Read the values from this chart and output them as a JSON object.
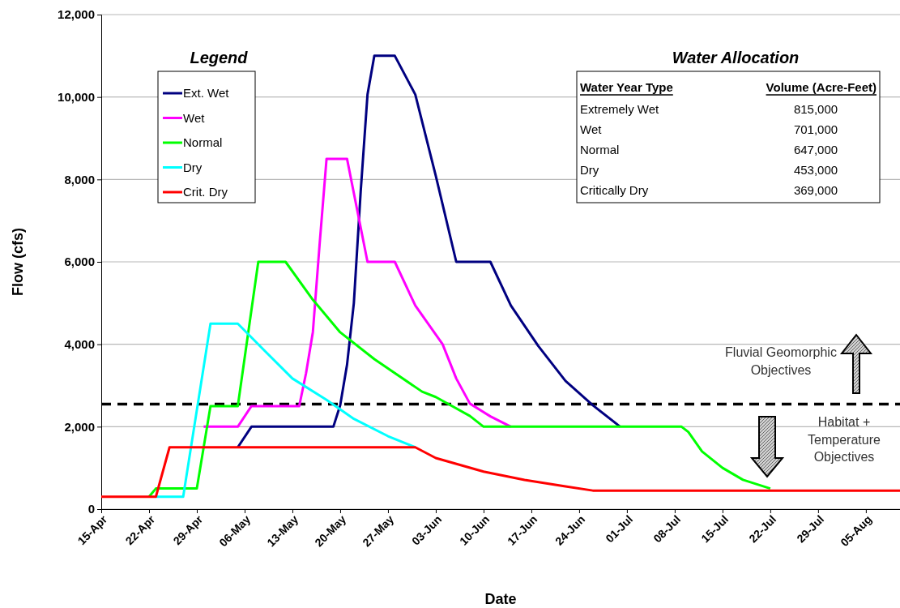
{
  "chart_data": {
    "type": "line",
    "xlabel": "Date",
    "ylabel": "Flow (cfs)",
    "legend_title": "Legend",
    "legend": "top left",
    "grid": "y",
    "marker": "none",
    "line_style": "solid",
    "xlim": [
      "--04-15",
      "--08-10"
    ],
    "xticks": [
      {
        "value": "--04-15",
        "label": "15-Apr"
      },
      {
        "value": "--04-22",
        "label": "22-Apr"
      },
      {
        "value": "--04-29",
        "label": "29-Apr"
      },
      {
        "value": "--05-06",
        "label": "06-May"
      },
      {
        "value": "--05-13",
        "label": "13-May"
      },
      {
        "value": "--05-20",
        "label": "20-May"
      },
      {
        "value": "--05-27",
        "label": "27-May"
      },
      {
        "value": "--06-03",
        "label": "03-Jun"
      },
      {
        "value": "--06-10",
        "label": "10-Jun"
      },
      {
        "value": "--06-17",
        "label": "17-Jun"
      },
      {
        "value": "--06-24",
        "label": "24-Jun"
      },
      {
        "value": "--07-01",
        "label": "01-Jul"
      },
      {
        "value": "--07-08",
        "label": "08-Jul"
      },
      {
        "value": "--07-15",
        "label": "15-Jul"
      },
      {
        "value": "--07-22",
        "label": "22-Jul"
      },
      {
        "value": "--07-29",
        "label": "29-Jul"
      },
      {
        "value": "--08-05",
        "label": "05-Aug"
      }
    ],
    "ylim": [
      0,
      12000
    ],
    "yticks": [
      {
        "value": 0,
        "label": "0"
      },
      {
        "value": 2000,
        "label": "2,000"
      },
      {
        "value": 4000,
        "label": "4,000"
      },
      {
        "value": 6000,
        "label": "6,000"
      },
      {
        "value": 8000,
        "label": "8,000"
      },
      {
        "value": 10000,
        "label": "10,000"
      },
      {
        "value": 12000,
        "label": "12,000"
      }
    ],
    "series": [
      {
        "name": "Ext. Wet",
        "color": "#000080",
        "x": [
          "--05-05",
          "--05-07",
          "--05-19",
          "--05-20",
          "--05-21",
          "--05-22",
          "--05-23",
          "--05-24",
          "--05-25",
          "--05-28",
          "--05-31",
          "--06-03",
          "--06-06",
          "--06-11",
          "--06-14",
          "--06-18",
          "--06-22",
          "--06-26",
          "--06-30"
        ],
        "values": [
          1500,
          2000,
          2000,
          2520,
          3500,
          5000,
          7700,
          10060,
          11000,
          11000,
          10060,
          8090,
          6000,
          6000,
          4940,
          3960,
          3110,
          2520,
          2000
        ]
      },
      {
        "name": "Wet",
        "color": "#ff00ff",
        "x": [
          "--04-30",
          "--05-05",
          "--05-07",
          "--05-14",
          "--05-15",
          "--05-16",
          "--05-17",
          "--05-18",
          "--05-21",
          "--05-24",
          "--05-28",
          "--05-31",
          "--06-04",
          "--06-06",
          "--06-08",
          "--06-11",
          "--06-14"
        ],
        "values": [
          2000,
          2000,
          2500,
          2500,
          3300,
          4300,
          6460,
          8500,
          8500,
          6000,
          6000,
          4940,
          4000,
          3170,
          2560,
          2250,
          2000
        ]
      },
      {
        "name": "Normal",
        "color": "#00ff00",
        "x": [
          "--04-22",
          "--04-23",
          "--04-29",
          "--05-01",
          "--05-05",
          "--05-08",
          "--05-12",
          "--05-16",
          "--05-20",
          "--05-25",
          "--06-01",
          "--06-03",
          "--06-08",
          "--06-10",
          "--07-09",
          "--07-10",
          "--07-12",
          "--07-15",
          "--07-18",
          "--07-22"
        ],
        "values": [
          300,
          500,
          500,
          2500,
          2500,
          6000,
          6000,
          5080,
          4290,
          3640,
          2850,
          2720,
          2260,
          2000,
          2000,
          1870,
          1400,
          1000,
          710,
          500
        ]
      },
      {
        "name": "Dry",
        "color": "#00ffff",
        "x": [
          "--04-23",
          "--04-27",
          "--05-01",
          "--05-05",
          "--05-09",
          "--05-13",
          "--05-18",
          "--05-22",
          "--05-27",
          "--05-31"
        ],
        "values": [
          300,
          300,
          4500,
          4500,
          3830,
          3170,
          2650,
          2190,
          1770,
          1500
        ]
      },
      {
        "name": "Crit. Dry",
        "color": "#ff0000",
        "x": [
          "--04-15",
          "--04-23",
          "--04-25",
          "--05-31",
          "--06-03",
          "--06-10",
          "--06-16",
          "--06-22",
          "--06-26",
          "--08-10"
        ],
        "values": [
          300,
          300,
          1500,
          1500,
          1240,
          910,
          710,
          550,
          450,
          450
        ]
      }
    ],
    "ref_lines": [
      {
        "axis": "y",
        "value": 2550,
        "color": "#000000",
        "line_style": "dashed"
      }
    ],
    "annotations": [
      "Water Allocation",
      "Water Year Type",
      "Volume (Acre-Feet)",
      "Extremely Wet",
      "815,000",
      "Wet",
      "701,000",
      "Normal",
      "647,000",
      "Dry",
      "453,000",
      "Critically Dry",
      "369,000",
      "Fluvial Geomorphic Objectives",
      "Habitat + Temperature Objectives"
    ]
  }
}
